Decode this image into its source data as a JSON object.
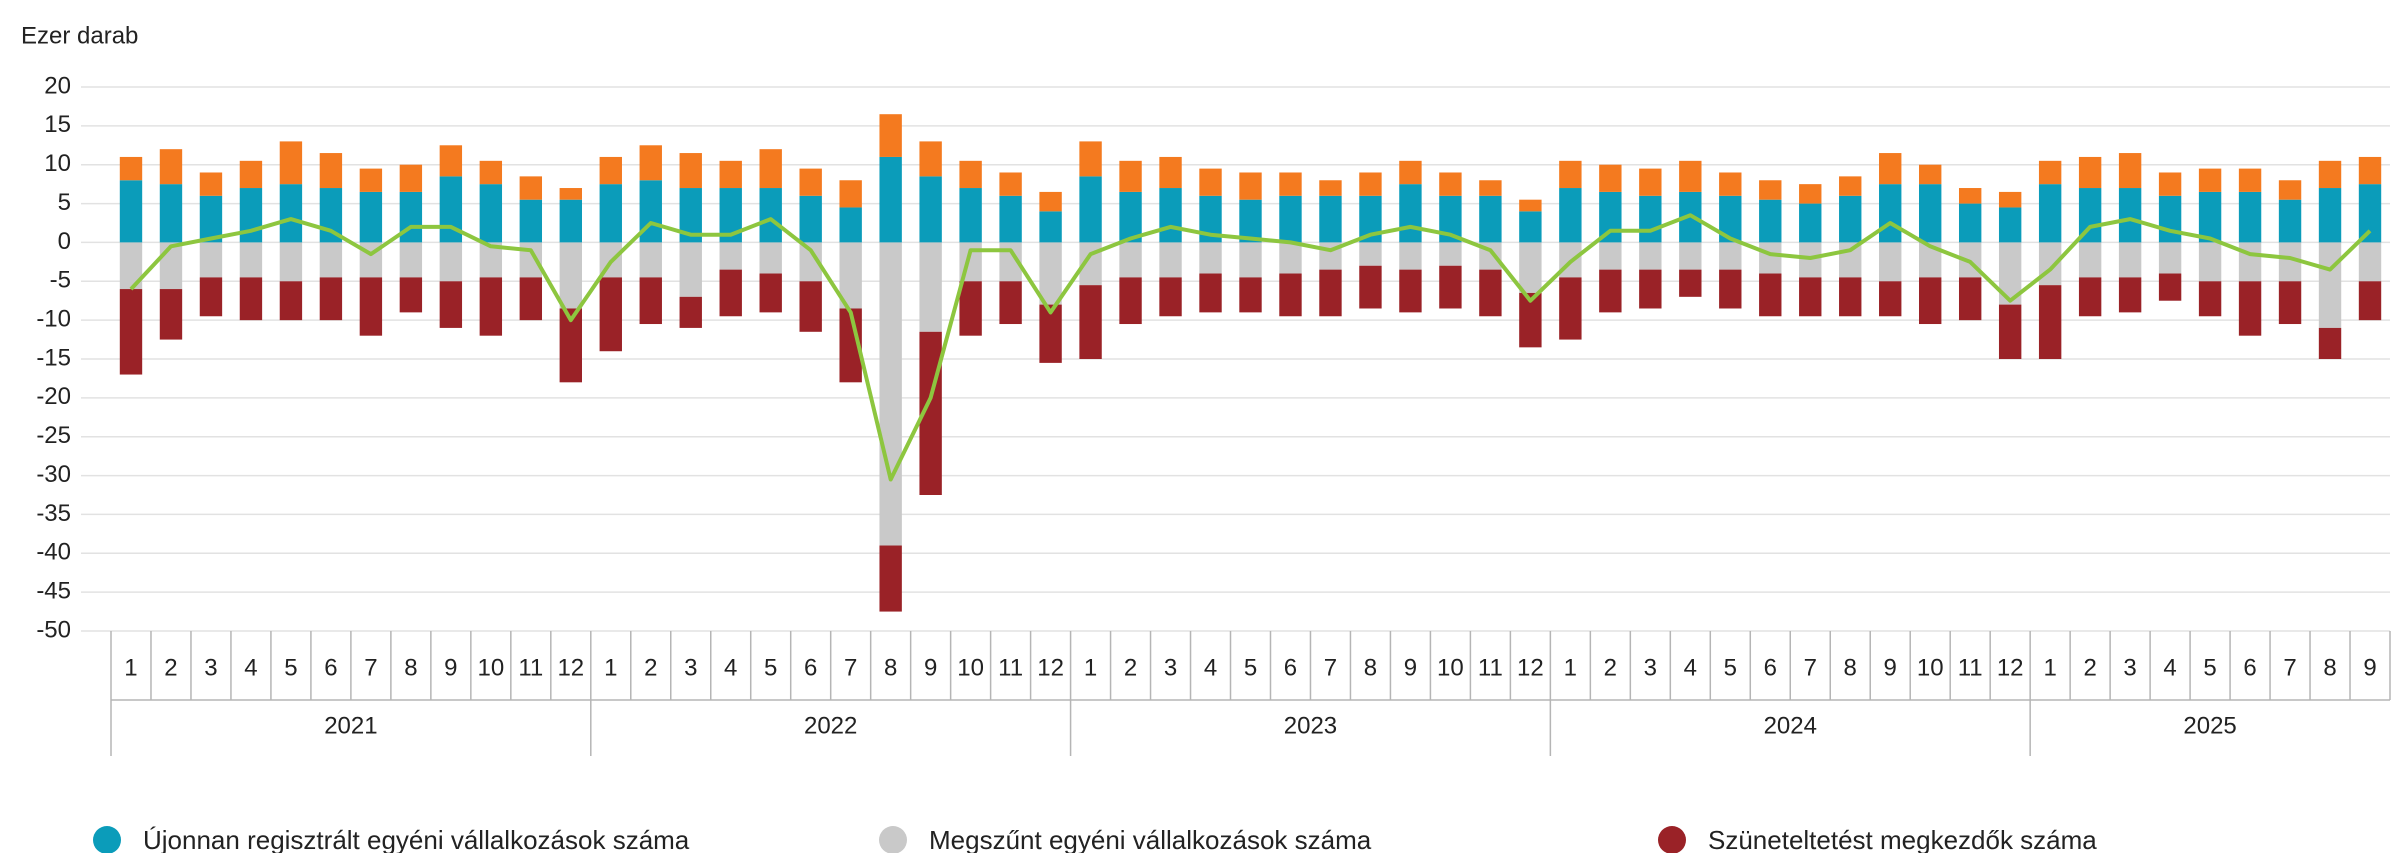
{
  "chart_data": {
    "type": "bar",
    "ylabel": "Ezer darab",
    "categories": [
      "1",
      "2",
      "3",
      "4",
      "5",
      "6",
      "7",
      "8",
      "9",
      "10",
      "11",
      "12",
      "1",
      "2",
      "3",
      "4",
      "5",
      "6",
      "7",
      "8",
      "9",
      "10",
      "11",
      "12",
      "1",
      "2",
      "3",
      "4",
      "5",
      "6",
      "7",
      "8",
      "9",
      "10",
      "11",
      "12",
      "1",
      "2",
      "3",
      "4",
      "5",
      "6",
      "7",
      "8",
      "9",
      "10",
      "11",
      "12",
      "1",
      "2",
      "3",
      "4",
      "5",
      "6",
      "7",
      "8",
      "9"
    ],
    "category_groups": [
      "2021",
      "2022",
      "2023",
      "2024",
      "2025"
    ],
    "ylim": [
      -50,
      20
    ],
    "yticks": [
      20,
      15,
      10,
      5,
      0,
      -5,
      -10,
      -15,
      -20,
      -25,
      -30,
      -35,
      -40,
      -45,
      -50
    ],
    "grid": true,
    "stacked": true,
    "series": [
      {
        "name": "Újonnan regisztrált egyéni vállalkozások száma",
        "color": "#0b9cba",
        "values": [
          8,
          7.5,
          6,
          7,
          7.5,
          7,
          6.5,
          6.5,
          8.5,
          7.5,
          5.5,
          5.5,
          7.5,
          8,
          7,
          7,
          7,
          6,
          4.5,
          11,
          8.5,
          7,
          6,
          4,
          8.5,
          6.5,
          7,
          6,
          5.5,
          6,
          6,
          6,
          7.5,
          6,
          6,
          4,
          7,
          6.5,
          6,
          6.5,
          6,
          5.5,
          5,
          6,
          7.5,
          7.5,
          5,
          4.5,
          7.5,
          7,
          7,
          6,
          6.5,
          6.5,
          5.5,
          7,
          7.5
        ]
      },
      {
        "color": "#f47a1f",
        "values": [
          3,
          4.5,
          3,
          3.5,
          5.5,
          4.5,
          3,
          3.5,
          4,
          3,
          3,
          1.5,
          3.5,
          4.5,
          4.5,
          3.5,
          5,
          3.5,
          3.5,
          5.5,
          4.5,
          3.5,
          3,
          2.5,
          4.5,
          4,
          4,
          3.5,
          3.5,
          3,
          2,
          3,
          3,
          3,
          2,
          1.5,
          3.5,
          3.5,
          3.5,
          4,
          3,
          2.5,
          2.5,
          2.5,
          4,
          2.5,
          2,
          2,
          3,
          4,
          4.5,
          3,
          3,
          3,
          2.5,
          3.5,
          3.5
        ]
      },
      {
        "name": "Megszűnt egyéni vállalkozások száma",
        "color": "#c9c9c9",
        "values": [
          -6,
          -6,
          -4.5,
          -4.5,
          -5,
          -4.5,
          -4.5,
          -4.5,
          -5,
          -4.5,
          -4.5,
          -8.5,
          -4.5,
          -4.5,
          -7,
          -3.5,
          -4,
          -5,
          -8.5,
          -39,
          -11.5,
          -5,
          -5,
          -8,
          -5.5,
          -4.5,
          -4.5,
          -4,
          -4.5,
          -4,
          -3.5,
          -3,
          -3.5,
          -3,
          -3.5,
          -6.5,
          -4.5,
          -3.5,
          -3.5,
          -3.5,
          -3.5,
          -4,
          -4.5,
          -4.5,
          -5,
          -4.5,
          -4.5,
          -8,
          -5.5,
          -4.5,
          -4.5,
          -4,
          -5,
          -5,
          -5,
          -11,
          -5
        ]
      },
      {
        "name": "Szüneteltetést megkezdők száma",
        "color": "#9a2227",
        "values": [
          -11,
          -6.5,
          -5,
          -5.5,
          -5,
          -5.5,
          -7.5,
          -4.5,
          -6,
          -7.5,
          -5.5,
          -9.5,
          -9.5,
          -6,
          -4,
          -6,
          -5,
          -6.5,
          -9.5,
          -8.5,
          -21,
          -7,
          -5.5,
          -7.5,
          -9.5,
          -6,
          -5,
          -5,
          -4.5,
          -5.5,
          -6,
          -5.5,
          -5.5,
          -5.5,
          -6,
          -7,
          -8,
          -5.5,
          -5,
          -3.5,
          -5,
          -5.5,
          -5,
          -5,
          -4.5,
          -6,
          -5.5,
          -7,
          -9.5,
          -5,
          -4.5,
          -3.5,
          -4.5,
          -7,
          -5.5,
          -4,
          -5
        ]
      },
      {
        "type": "line",
        "color": "#8dc63f",
        "values": [
          -6,
          -0.5,
          0.5,
          1.5,
          3,
          1.5,
          -1.5,
          2,
          2,
          -0.5,
          -1,
          -10,
          -2.5,
          2.5,
          1,
          1,
          3,
          -1,
          -9,
          -30.5,
          -20,
          -1,
          -1,
          -9,
          -1.5,
          0.5,
          2,
          1,
          0.5,
          0,
          -1,
          1,
          2,
          1,
          -1,
          -7.5,
          -2.5,
          1.5,
          1.5,
          3.5,
          0.5,
          -1.5,
          -2,
          -1,
          2.5,
          -0.5,
          -2.5,
          -7.5,
          -3.5,
          2,
          3,
          1.5,
          0.5,
          -1.5,
          -2,
          -3.5,
          1.5
        ]
      }
    ]
  }
}
